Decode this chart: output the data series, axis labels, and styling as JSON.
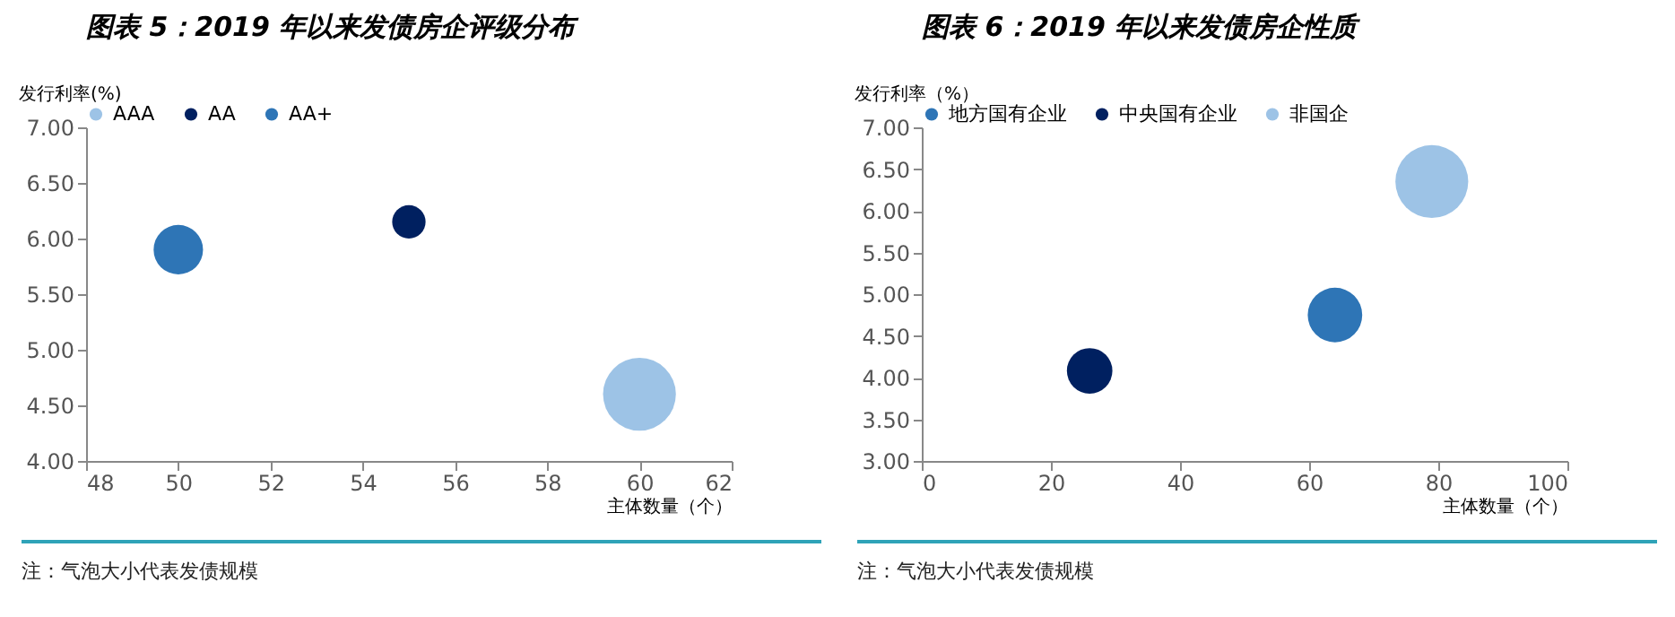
{
  "chart_data": [
    {
      "type": "bubble",
      "title": "图表 5：2019 年以来发债房企评级分布",
      "xlabel": "主体数量（个）",
      "ylabel": "发行利率(%)",
      "annotations": [
        "注：气泡大小代表发债规模"
      ],
      "legend": "top",
      "grid": false,
      "xlim": [
        48,
        62
      ],
      "xticks": [
        48,
        50,
        52,
        54,
        56,
        58,
        60,
        62
      ],
      "ylim": [
        4,
        7
      ],
      "yticks": [
        {
          "value": 4,
          "label": "4.00"
        },
        {
          "value": 4.5,
          "label": "4.50"
        },
        {
          "value": 5,
          "label": "5.00"
        },
        {
          "value": 5.5,
          "label": "5.50"
        },
        {
          "value": 6,
          "label": "6.00"
        },
        {
          "value": 6.5,
          "label": "6.50"
        },
        {
          "value": 7,
          "label": "7.00"
        }
      ],
      "series": [
        {
          "name": "AAA",
          "color": "#9dc3e6",
          "x": [
            60
          ],
          "values": [
            4.6
          ],
          "sizes": [
            1
          ]
        },
        {
          "name": "AA",
          "color": "#002060",
          "x": [
            55
          ],
          "values": [
            6.15
          ],
          "sizes": [
            0.21
          ]
        },
        {
          "name": "AA+",
          "color": "#2e75b6",
          "x": [
            50
          ],
          "values": [
            5.9
          ],
          "sizes": [
            0.46
          ]
        }
      ]
    },
    {
      "type": "bubble",
      "title": "图表 6：2019 年以来发债房企性质",
      "xlabel": "主体数量（个）",
      "ylabel": "发行利率（%）",
      "annotations": [
        "注：气泡大小代表发债规模"
      ],
      "legend": "top",
      "grid": false,
      "xlim": [
        0,
        100
      ],
      "xticks": [
        0,
        20,
        40,
        60,
        80,
        100
      ],
      "ylim": [
        3,
        7
      ],
      "yticks": [
        {
          "value": 3,
          "label": "3.00"
        },
        {
          "value": 3.5,
          "label": "3.50"
        },
        {
          "value": 4,
          "label": "4.00"
        },
        {
          "value": 4.5,
          "label": "4.50"
        },
        {
          "value": 5,
          "label": "5.00"
        },
        {
          "value": 5.5,
          "label": "5.50"
        },
        {
          "value": 6,
          "label": "6.00"
        },
        {
          "value": 6.5,
          "label": "6.50"
        },
        {
          "value": 7,
          "label": "7.00"
        }
      ],
      "series": [
        {
          "name": "地方国有企业",
          "color": "#2e75b6",
          "x": [
            64
          ],
          "values": [
            4.75
          ],
          "sizes": [
            0.56
          ]
        },
        {
          "name": "中央国有企业",
          "color": "#002060",
          "x": [
            26
          ],
          "values": [
            4.08
          ],
          "sizes": [
            0.39
          ]
        },
        {
          "name": "非国企",
          "color": "#9dc3e6",
          "x": [
            79
          ],
          "values": [
            6.35
          ],
          "sizes": [
            1
          ]
        }
      ]
    }
  ]
}
